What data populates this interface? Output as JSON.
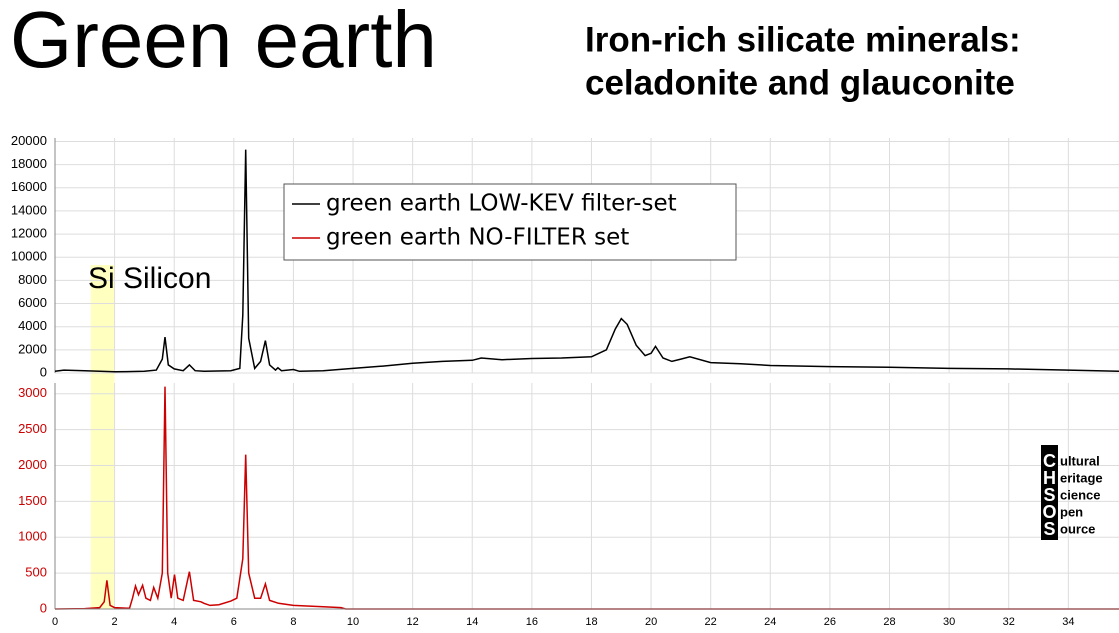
{
  "header": {
    "title": "Green earth",
    "subtitle_lines": [
      "Iron-rich silicate minerals:",
      "celadonite and glauconite"
    ]
  },
  "chart_data": [
    {
      "type": "line",
      "xlim": [
        0,
        35.7
      ],
      "ylim": [
        0,
        20300
      ],
      "yticks": [
        0,
        2000,
        4000,
        6000,
        8000,
        10000,
        12000,
        14000,
        16000,
        18000,
        20000
      ],
      "grid": true,
      "legend": "upper center",
      "x": [
        0,
        0.3,
        1.0,
        2.0,
        3.0,
        3.4,
        3.6,
        3.69,
        3.8,
        4.0,
        4.3,
        4.51,
        4.7,
        5.0,
        5.9,
        6.2,
        6.3,
        6.4,
        6.5,
        6.7,
        6.9,
        7.06,
        7.2,
        7.4,
        7.48,
        7.6,
        8.0,
        8.2,
        9.0,
        10,
        11,
        12,
        13,
        14,
        14.3,
        15,
        16,
        17,
        18,
        18.5,
        18.8,
        19.0,
        19.2,
        19.5,
        19.8,
        20.0,
        20.15,
        20.4,
        20.7,
        21.0,
        21.3,
        22,
        23,
        24,
        26,
        28,
        30,
        32,
        34,
        35.7
      ],
      "series": [
        {
          "name": "green earth LOW-KEV filter-set",
          "color": "#000000",
          "values": [
            150,
            250,
            200,
            100,
            150,
            250,
            1200,
            3100,
            700,
            350,
            200,
            700,
            200,
            150,
            200,
            400,
            5000,
            19300,
            3000,
            400,
            1000,
            2800,
            700,
            250,
            450,
            200,
            300,
            150,
            200,
            400,
            600,
            850,
            1000,
            1100,
            1300,
            1150,
            1250,
            1300,
            1400,
            2000,
            3800,
            4700,
            4200,
            2400,
            1500,
            1700,
            2300,
            1300,
            1000,
            1200,
            1400,
            900,
            800,
            650,
            550,
            500,
            400,
            350,
            250,
            150
          ]
        }
      ]
    },
    {
      "type": "line",
      "xlim": [
        0,
        35.7
      ],
      "ylim": [
        0,
        3150
      ],
      "yticks": [
        0,
        500,
        1000,
        1500,
        2000,
        2500,
        3000
      ],
      "xticks": [
        0,
        2,
        4,
        6,
        8,
        10,
        12,
        14,
        16,
        18,
        20,
        22,
        24,
        26,
        28,
        30,
        32,
        34
      ],
      "grid": true,
      "tick_color": "#cc0000",
      "x": [
        0,
        1.0,
        1.5,
        1.65,
        1.74,
        1.85,
        2.0,
        2.5,
        2.6,
        2.7,
        2.8,
        2.94,
        3.05,
        3.2,
        3.31,
        3.45,
        3.6,
        3.69,
        3.78,
        3.9,
        4.01,
        4.12,
        4.3,
        4.51,
        4.65,
        4.9,
        5.0,
        5.2,
        5.5,
        5.9,
        6.1,
        6.3,
        6.4,
        6.5,
        6.7,
        6.9,
        7.06,
        7.2,
        7.5,
        8.0,
        9.0,
        9.6,
        9.75,
        12,
        20,
        35.7
      ],
      "series": [
        {
          "name": "green earth NO-FILTER set",
          "color": "#cc0000",
          "values": [
            0,
            5,
            20,
            100,
            400,
            50,
            20,
            10,
            150,
            320,
            200,
            330,
            150,
            120,
            300,
            150,
            500,
            3100,
            500,
            150,
            480,
            150,
            120,
            520,
            120,
            100,
            80,
            50,
            60,
            110,
            150,
            700,
            2150,
            500,
            150,
            150,
            350,
            120,
            80,
            50,
            30,
            20,
            0,
            0,
            0,
            0
          ]
        }
      ]
    }
  ],
  "highlight": {
    "label": "Si Silicon",
    "xrange": [
      1.2,
      2.0
    ],
    "color": "#ffffb0"
  },
  "logo": {
    "letters": [
      "C",
      "H",
      "S",
      "O",
      "S"
    ],
    "words": [
      "ultural",
      "eritage",
      "cience",
      "pen",
      "ource"
    ]
  }
}
